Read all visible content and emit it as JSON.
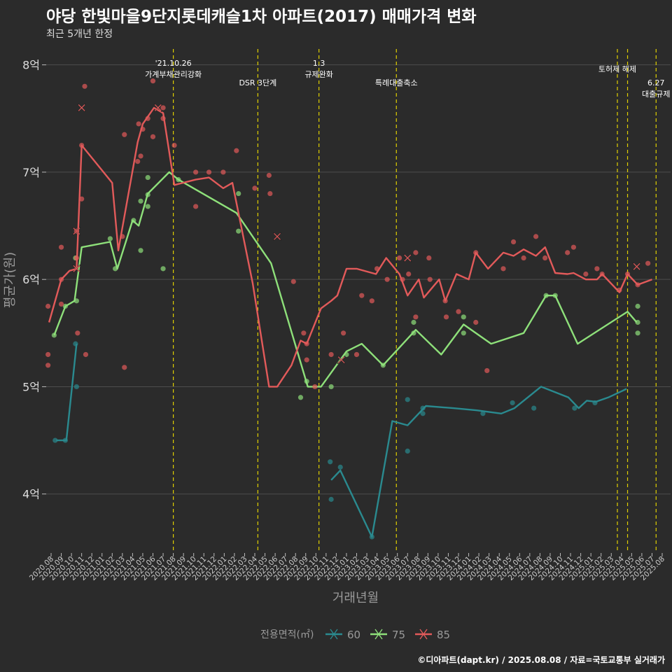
{
  "title": "야당 한빛마을9단지롯데캐슬1차 아파트(2017) 매매가격 변화",
  "subtitle": "최근 5개년 한정",
  "caption": "©디아파트(dapt.kr) / 2025.08.08 / 자료=국토교통부 실거래가",
  "colors": {
    "background": "#2b2b2b",
    "grid": "#4d4d4d",
    "event_line": "#e0d000",
    "s60": "#2a8a8f",
    "s75": "#8ee07a",
    "s85": "#e25a5a"
  },
  "chart_data": {
    "type": "line",
    "xlabel": "거래년월",
    "ylabel": "평균가(원)",
    "x_categories": [
      "2020.08",
      "2020.09",
      "2020.10",
      "2020.11",
      "2020.12",
      "2021.01",
      "2021.02",
      "2021.03",
      "2021.04",
      "2021.05",
      "2021.06",
      "2021.07",
      "2021.08",
      "2021.09",
      "2021.10",
      "2021.11",
      "2021.12",
      "2022.01",
      "2022.02",
      "2022.03",
      "2022.04",
      "2022.05",
      "2022.06",
      "2022.07",
      "2022.08",
      "2022.09",
      "2022.10",
      "2022.11",
      "2022.12",
      "2023.01",
      "2023.02",
      "2023.03",
      "2023.04",
      "2023.05",
      "2023.06",
      "2023.07",
      "2023.08",
      "2023.09",
      "2023.10",
      "2023.11",
      "2023.12",
      "2024.01",
      "2024.02",
      "2024.03",
      "2024.04",
      "2024.05",
      "2024.06",
      "2024.07",
      "2024.08",
      "2024.09",
      "2024.10",
      "2024.11",
      "2024.12",
      "2025.01",
      "2025.02",
      "2025.03",
      "2025.04",
      "2025.05",
      "2025.06",
      "2025.07",
      "2025.08"
    ],
    "y_ticks": [
      {
        "value": 4,
        "label": "4억"
      },
      {
        "value": 5,
        "label": "5억"
      },
      {
        "value": 6,
        "label": "6억"
      },
      {
        "value": 7,
        "label": "7억"
      },
      {
        "value": 8,
        "label": "8억"
      }
    ],
    "ylim": [
      3.45,
      8.2
    ],
    "legend": {
      "title": "전용면적(㎡)",
      "position": "bottom"
    },
    "series": [
      {
        "name": "60",
        "color": "#2a8a8f",
        "line": [
          [
            0.5,
            4.5
          ],
          [
            1.5,
            4.5
          ],
          [
            2.5,
            5.4
          ]
        ],
        "points": [
          [
            0.4,
            4.5
          ],
          [
            1.4,
            4.5
          ],
          [
            2.4,
            5.4
          ],
          [
            2.5,
            5.0
          ],
          [
            27.4,
            4.3
          ],
          [
            27.5,
            3.95
          ],
          [
            28.4,
            4.25
          ],
          [
            31.5,
            3.6
          ],
          [
            35.0,
            4.88
          ],
          [
            35.0,
            4.4
          ],
          [
            36.5,
            4.8
          ],
          [
            36.5,
            4.75
          ],
          [
            42.4,
            4.75
          ],
          [
            45.3,
            4.85
          ],
          [
            47.4,
            4.8
          ],
          [
            51.4,
            4.8
          ],
          [
            53.4,
            4.85
          ]
        ],
        "line2": [
          [
            27.5,
            4.13
          ],
          [
            28.4,
            4.22
          ],
          [
            31.5,
            3.6
          ],
          [
            33.5,
            4.68
          ],
          [
            35.0,
            4.64
          ],
          [
            36.8,
            4.82
          ],
          [
            39.5,
            4.8
          ],
          [
            41.8,
            4.78
          ],
          [
            44.2,
            4.75
          ],
          [
            45.5,
            4.8
          ],
          [
            48.1,
            5.0
          ],
          [
            50.8,
            4.9
          ],
          [
            51.8,
            4.8
          ],
          [
            52.6,
            4.87
          ],
          [
            53.5,
            4.86
          ],
          [
            54.7,
            4.9
          ],
          [
            56.5,
            4.98
          ]
        ]
      },
      {
        "name": "75",
        "color": "#8ee07a",
        "line": [
          [
            0.3,
            5.48
          ],
          [
            1.4,
            5.75
          ],
          [
            2.3,
            5.8
          ],
          [
            3.0,
            6.3
          ],
          [
            5.8,
            6.35
          ],
          [
            6.5,
            6.1
          ],
          [
            8.0,
            6.55
          ],
          [
            8.6,
            6.5
          ],
          [
            9.5,
            6.8
          ],
          [
            11.6,
            7.0
          ],
          [
            12.5,
            6.93
          ],
          [
            18.2,
            6.62
          ],
          [
            21.6,
            6.15
          ],
          [
            25.2,
            5.0
          ],
          [
            26.5,
            5.0
          ],
          [
            29.0,
            5.33
          ],
          [
            30.5,
            5.4
          ],
          [
            32.6,
            5.2
          ],
          [
            35.8,
            5.53
          ],
          [
            38.3,
            5.3
          ],
          [
            40.5,
            5.58
          ],
          [
            43.2,
            5.4
          ],
          [
            44.8,
            5.45
          ],
          [
            46.4,
            5.5
          ],
          [
            48.6,
            5.85
          ],
          [
            49.5,
            5.85
          ],
          [
            51.7,
            5.4
          ],
          [
            56.6,
            5.7
          ],
          [
            57.5,
            5.6
          ]
        ],
        "points": [
          [
            0.3,
            5.48
          ],
          [
            1.4,
            5.75
          ],
          [
            2.4,
            6.2
          ],
          [
            2.5,
            5.8
          ],
          [
            5.8,
            6.38
          ],
          [
            6.3,
            6.1
          ],
          [
            8.1,
            6.55
          ],
          [
            8.8,
            6.27
          ],
          [
            8.8,
            6.73
          ],
          [
            9.5,
            6.95
          ],
          [
            9.5,
            6.79
          ],
          [
            9.5,
            6.68
          ],
          [
            11.0,
            6.1
          ],
          [
            12.5,
            6.93
          ],
          [
            18.4,
            6.45
          ],
          [
            18.4,
            6.8
          ],
          [
            24.5,
            4.9
          ],
          [
            25.1,
            5.05
          ],
          [
            27.5,
            5.0
          ],
          [
            29.0,
            5.3
          ],
          [
            32.6,
            5.2
          ],
          [
            35.6,
            5.6
          ],
          [
            35.6,
            5.5
          ],
          [
            40.5,
            5.65
          ],
          [
            40.5,
            5.5
          ],
          [
            48.6,
            5.85
          ],
          [
            49.5,
            5.85
          ],
          [
            57.6,
            5.75
          ],
          [
            57.6,
            5.6
          ],
          [
            57.6,
            5.5
          ]
        ]
      },
      {
        "name": "85",
        "color": "#e25a5a",
        "line": [
          [
            -0.2,
            5.6
          ],
          [
            1.0,
            6.0
          ],
          [
            1.8,
            6.08
          ],
          [
            2.5,
            6.1
          ],
          [
            3.0,
            7.25
          ],
          [
            6.0,
            6.9
          ],
          [
            6.6,
            6.27
          ],
          [
            8.5,
            7.28
          ],
          [
            9.0,
            7.45
          ],
          [
            10.1,
            7.6
          ],
          [
            11.0,
            7.55
          ],
          [
            12.1,
            6.88
          ],
          [
            14.2,
            6.93
          ],
          [
            15.5,
            6.95
          ],
          [
            16.9,
            6.85
          ],
          [
            17.8,
            6.9
          ],
          [
            19.8,
            5.96
          ],
          [
            21.4,
            5.0
          ],
          [
            22.2,
            5.0
          ],
          [
            23.6,
            5.2
          ],
          [
            24.5,
            5.43
          ],
          [
            25.1,
            5.4
          ],
          [
            26.5,
            5.73
          ],
          [
            27.5,
            5.8
          ],
          [
            28.1,
            5.85
          ],
          [
            29.0,
            6.1
          ],
          [
            30.0,
            6.1
          ],
          [
            31.9,
            6.05
          ],
          [
            32.9,
            6.2
          ],
          [
            34.2,
            6.05
          ],
          [
            35.0,
            5.85
          ],
          [
            36.1,
            6.0
          ],
          [
            36.6,
            5.83
          ],
          [
            38.1,
            6.0
          ],
          [
            38.7,
            5.8
          ],
          [
            39.8,
            6.05
          ],
          [
            41.0,
            6.0
          ],
          [
            41.7,
            6.25
          ],
          [
            42.9,
            6.1
          ],
          [
            44.4,
            6.25
          ],
          [
            45.4,
            6.22
          ],
          [
            46.4,
            6.28
          ],
          [
            47.6,
            6.22
          ],
          [
            48.5,
            6.3
          ],
          [
            49.5,
            6.06
          ],
          [
            50.7,
            6.05
          ],
          [
            51.3,
            6.06
          ],
          [
            52.5,
            6.0
          ],
          [
            53.6,
            6.0
          ],
          [
            54.1,
            6.05
          ],
          [
            55.8,
            5.88
          ],
          [
            56.6,
            6.05
          ],
          [
            57.6,
            5.95
          ],
          [
            59.0,
            6.0
          ]
        ],
        "points": [
          [
            -0.3,
            5.75
          ],
          [
            -0.3,
            5.3
          ],
          [
            -0.3,
            5.2
          ],
          [
            1.0,
            6.0
          ],
          [
            1.0,
            5.77
          ],
          [
            1.0,
            6.3
          ],
          [
            2.5,
            6.45
          ],
          [
            2.5,
            6.2
          ],
          [
            2.6,
            5.5
          ],
          [
            3.0,
            7.25
          ],
          [
            3.0,
            6.75
          ],
          [
            3.3,
            7.8
          ],
          [
            3.4,
            5.3
          ],
          [
            7.0,
            6.4
          ],
          [
            7.2,
            5.18
          ],
          [
            7.2,
            7.35
          ],
          [
            8.5,
            7.1
          ],
          [
            8.6,
            7.45
          ],
          [
            8.8,
            7.15
          ],
          [
            9.0,
            7.4
          ],
          [
            9.5,
            7.5
          ],
          [
            10.0,
            7.85
          ],
          [
            10.0,
            7.33
          ],
          [
            11.0,
            7.6
          ],
          [
            11.0,
            7.5
          ],
          [
            12.1,
            7.25
          ],
          [
            14.2,
            7.0
          ],
          [
            14.2,
            6.68
          ],
          [
            15.5,
            7.0
          ],
          [
            16.9,
            7.0
          ],
          [
            18.2,
            7.2
          ],
          [
            20.0,
            6.85
          ],
          [
            21.4,
            6.97
          ],
          [
            21.5,
            6.8
          ],
          [
            23.8,
            5.98
          ],
          [
            24.8,
            5.5
          ],
          [
            25.1,
            5.4
          ],
          [
            25.1,
            5.25
          ],
          [
            25.9,
            5.0
          ],
          [
            27.5,
            5.3
          ],
          [
            28.7,
            5.5
          ],
          [
            30.0,
            5.3
          ],
          [
            30.5,
            5.85
          ],
          [
            31.5,
            5.8
          ],
          [
            32.0,
            6.1
          ],
          [
            33.0,
            6.0
          ],
          [
            34.2,
            6.2
          ],
          [
            34.5,
            6.0
          ],
          [
            35.1,
            6.05
          ],
          [
            35.8,
            6.25
          ],
          [
            35.8,
            5.65
          ],
          [
            37.1,
            6.2
          ],
          [
            37.2,
            6.0
          ],
          [
            38.7,
            5.8
          ],
          [
            38.8,
            5.65
          ],
          [
            40.0,
            5.7
          ],
          [
            41.7,
            6.25
          ],
          [
            41.7,
            5.6
          ],
          [
            42.8,
            5.15
          ],
          [
            44.4,
            6.1
          ],
          [
            45.4,
            6.35
          ],
          [
            46.4,
            6.2
          ],
          [
            47.6,
            6.4
          ],
          [
            48.5,
            6.2
          ],
          [
            50.7,
            6.25
          ],
          [
            51.3,
            6.3
          ],
          [
            52.5,
            6.05
          ],
          [
            53.6,
            6.1
          ],
          [
            54.1,
            6.05
          ],
          [
            55.8,
            5.9
          ],
          [
            56.6,
            6.05
          ],
          [
            57.6,
            5.95
          ],
          [
            58.6,
            6.15
          ]
        ]
      }
    ],
    "line_60_part1": [
      [
        0.5,
        4.5
      ],
      [
        1.5,
        4.5
      ],
      [
        2.5,
        5.4
      ]
    ],
    "x_markers": [
      {
        "series": "85",
        "x": 2.5,
        "y": 6.45
      },
      {
        "series": "85",
        "x": 2.5,
        "y": 6.1
      },
      {
        "series": "85",
        "x": 3.0,
        "y": 7.6
      },
      {
        "series": "85",
        "x": 10.5,
        "y": 7.6
      },
      {
        "series": "85",
        "x": 22.2,
        "y": 6.4
      },
      {
        "series": "85",
        "x": 28.5,
        "y": 5.25
      },
      {
        "series": "85",
        "x": 35.0,
        "y": 6.2
      },
      {
        "series": "85",
        "x": 57.5,
        "y": 6.12
      }
    ],
    "events": [
      {
        "x": 12.0,
        "label_lines": [
          "'21.10.26",
          "가계부채관리강화"
        ],
        "label_y": 0
      },
      {
        "x": 20.3,
        "label_lines": [
          "DSR 3단계"
        ],
        "label_y": 1
      },
      {
        "x": 26.3,
        "label_lines": [
          "1.3",
          "규제완화"
        ],
        "label_y": 0
      },
      {
        "x": 33.9,
        "label_lines": [
          "특례대출축소"
        ],
        "label_y": 1
      },
      {
        "x": 55.6,
        "label_lines": [
          "토허제 해제"
        ],
        "label_y": 0.3
      },
      {
        "x": 56.6,
        "label_lines": [],
        "label_y": 0
      },
      {
        "x": 59.4,
        "label_lines": [
          "6.27",
          "대출규제"
        ],
        "label_y": 1
      }
    ]
  }
}
